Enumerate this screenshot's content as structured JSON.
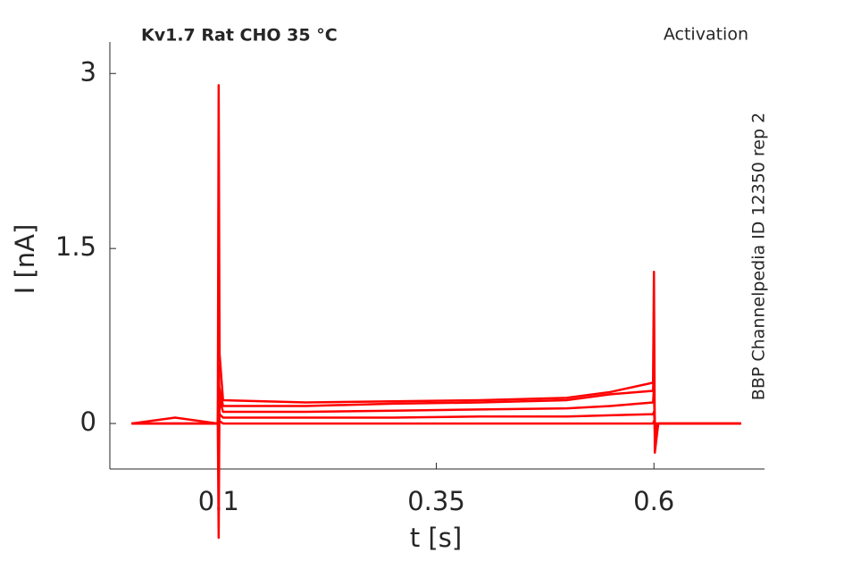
{
  "chart_data": {
    "type": "line",
    "title": "Kv1.7  Rat  CHO  35 °C",
    "subtitle": "Activation",
    "annotation": "BBP Channelpedia ID 12350 rep 2",
    "xlabel": "t [s]",
    "ylabel": "I [nA]",
    "x": [
      0,
      0.05,
      0.099,
      0.1,
      0.101,
      0.105,
      0.2,
      0.3,
      0.4,
      0.5,
      0.55,
      0.599,
      0.6,
      0.601,
      0.605,
      0.7
    ],
    "series": [
      {
        "color": "#ff0000",
        "values": [
          0,
          0,
          0,
          2.9,
          0.6,
          0.2,
          0.18,
          0.19,
          0.2,
          0.22,
          0.27,
          0.35,
          1.3,
          -0.25,
          0,
          0
        ]
      },
      {
        "color": "#ff0000",
        "values": [
          0,
          0.05,
          0,
          -0.98,
          0.3,
          0.15,
          0.15,
          0.17,
          0.18,
          0.2,
          0.25,
          0.28,
          0.5,
          -0.1,
          0,
          0
        ]
      },
      {
        "color": "#ff0000",
        "values": [
          0,
          0,
          0,
          0.5,
          0.2,
          0.1,
          0.1,
          0.11,
          0.12,
          0.13,
          0.15,
          0.18,
          0.3,
          -0.05,
          0,
          0
        ]
      },
      {
        "color": "#ff0000",
        "values": [
          0,
          0,
          0,
          0.2,
          0.08,
          0.05,
          0.05,
          0.05,
          0.06,
          0.06,
          0.07,
          0.08,
          0.1,
          0,
          0,
          0
        ]
      },
      {
        "color": "#ff0000",
        "values": [
          0,
          0,
          0,
          0.05,
          0.02,
          0,
          0,
          0,
          0,
          0,
          0,
          0,
          0.02,
          0,
          0,
          0
        ]
      }
    ],
    "xlim": [
      -0.025,
      0.727
    ],
    "ylim": [
      -0.39,
      3.27
    ],
    "xticks": [
      0.1,
      0.35,
      0.6
    ],
    "yticks": [
      0,
      1.5,
      3
    ],
    "grid": false
  }
}
